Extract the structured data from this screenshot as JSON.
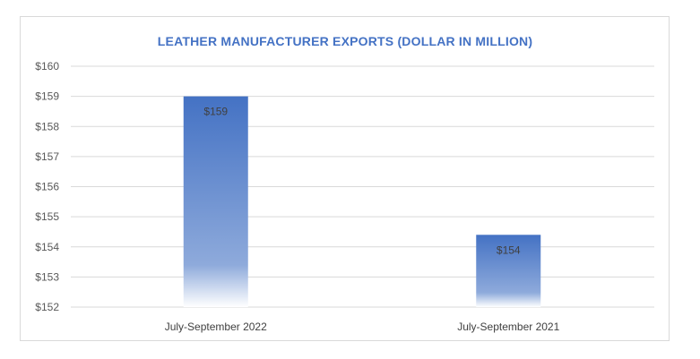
{
  "chart_data": {
    "type": "bar",
    "title": "LEATHER MANUFACTURER EXPORTS (DOLLAR IN MILLION)",
    "xlabel": "",
    "ylabel": "",
    "categories": [
      "July-September 2022",
      "July-September 2021"
    ],
    "values": [
      159,
      154.4
    ],
    "data_labels": [
      "$159",
      "$154"
    ],
    "ylim": [
      152,
      160
    ],
    "yticks": [
      152,
      153,
      154,
      155,
      156,
      157,
      158,
      159,
      160
    ],
    "ytick_labels": [
      "$152",
      "$153",
      "$154",
      "$155",
      "$156",
      "$157",
      "$158",
      "$159",
      "$160"
    ],
    "grid": true,
    "legend": "none",
    "colors": {
      "bar_top": "#4472c4",
      "bar_bottom": "#ffffff",
      "title": "#4472c4",
      "gridline": "#d9d9d9"
    }
  }
}
